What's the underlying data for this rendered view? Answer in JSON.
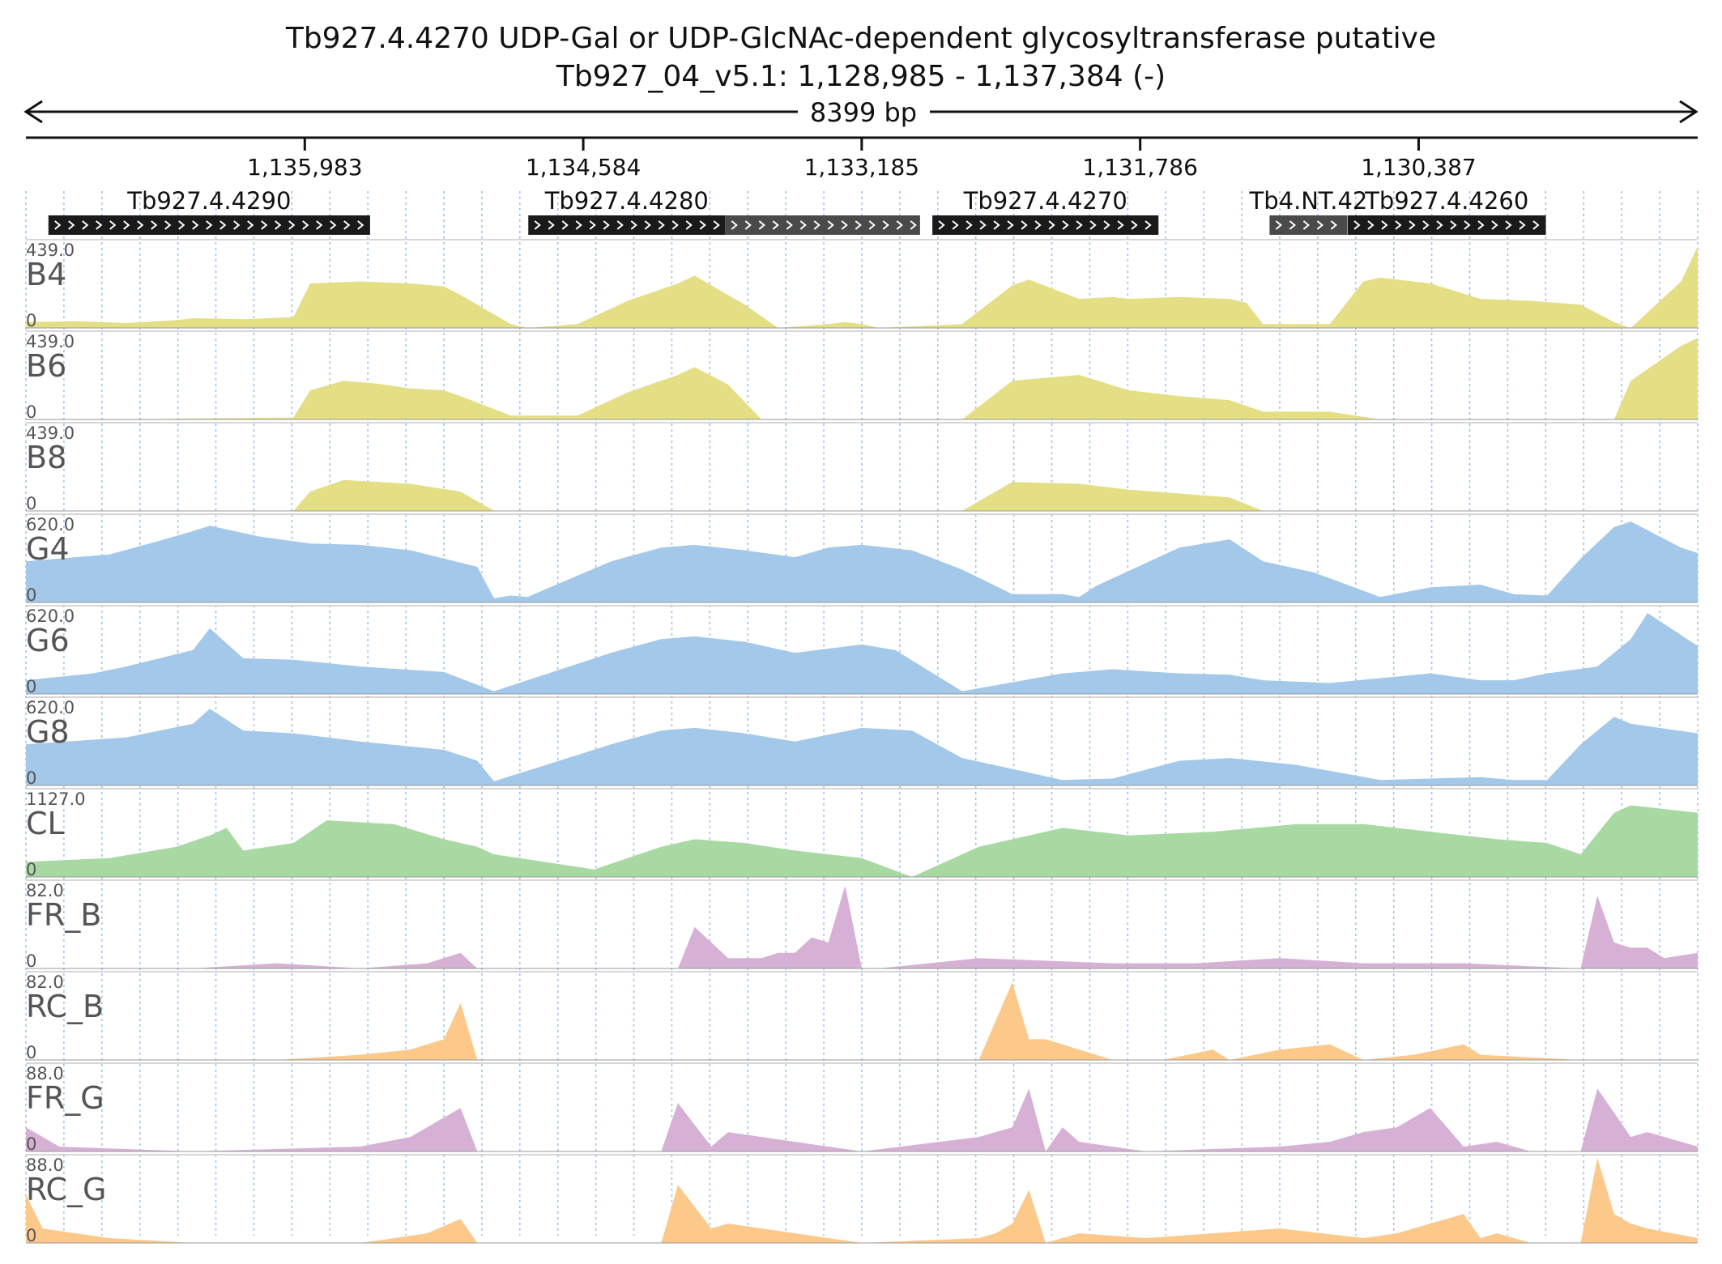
{
  "chart_data": {
    "type": "area",
    "title": "Tb927.4.4270  UDP-Gal or UDP-GlcNAc-dependent glycosyltransferase  putative",
    "subtitle": "Tb927_04_v5.1: 1,128,985 - 1,137,384 (-)",
    "span_label": "8399 bp",
    "region": {
      "chrom": "Tb927_04_v5.1",
      "start": 1128985,
      "end": 1137384,
      "strand": "-"
    },
    "tick_labels": [
      "1,135,983",
      "1,134,584",
      "1,133,185",
      "1,131,786",
      "1,130,387"
    ],
    "genes": [
      {
        "name": "Tb927.4.4290",
        "start": 1135655,
        "end": 1137271,
        "color": "#1a1a1a"
      },
      {
        "name": "Tb927.4.4280",
        "start": 1133871,
        "end": 1134860,
        "color": "#1a1a1a"
      },
      {
        "name": "Tb927.4.4280",
        "start": 1132892,
        "end": 1133871,
        "color": "#4a4a4a",
        "label_visible": false
      },
      {
        "name": "Tb927.4.4270",
        "start": 1131694,
        "end": 1132830,
        "color": "#1a1a1a"
      },
      {
        "name": "Tb4.NT.42",
        "start": 1130745,
        "end": 1131136,
        "color": "#4a4a4a"
      },
      {
        "name": "Tb927.4.4260",
        "start": 1129748,
        "end": 1130743,
        "color": "#1a1a1a"
      }
    ],
    "x_unit": "fraction of region",
    "tracks": [
      {
        "name": "B4",
        "ymax_label": "439.0",
        "ymin_label": "0",
        "ymax": 439,
        "color": "#e4de85",
        "x": [
          0,
          0.03,
          0.06,
          0.09,
          0.1,
          0.13,
          0.16,
          0.17,
          0.2,
          0.23,
          0.25,
          0.26,
          0.29,
          0.3,
          0.33,
          0.36,
          0.39,
          0.4,
          0.43,
          0.45,
          0.48,
          0.49,
          0.5,
          0.51,
          0.56,
          0.59,
          0.6,
          0.63,
          0.65,
          0.66,
          0.69,
          0.72,
          0.73,
          0.74,
          0.75,
          0.78,
          0.8,
          0.81,
          0.84,
          0.87,
          0.9,
          0.93,
          0.95,
          0.96,
          0.99,
          1
        ],
        "y": [
          30,
          35,
          25,
          40,
          50,
          45,
          55,
          230,
          240,
          230,
          215,
          170,
          20,
          0,
          20,
          140,
          230,
          270,
          120,
          0,
          20,
          30,
          20,
          0,
          20,
          220,
          250,
          150,
          160,
          150,
          160,
          150,
          130,
          20,
          20,
          20,
          240,
          260,
          230,
          150,
          140,
          120,
          30,
          0,
          240,
          420
        ]
      },
      {
        "name": "B6",
        "ymax_label": "439.0",
        "ymin_label": "0",
        "ymax": 439,
        "color": "#e4de85",
        "x": [
          0,
          0.06,
          0.1,
          0.16,
          0.17,
          0.19,
          0.21,
          0.23,
          0.25,
          0.26,
          0.29,
          0.33,
          0.36,
          0.39,
          0.4,
          0.42,
          0.44,
          0.45,
          0.5,
          0.56,
          0.59,
          0.63,
          0.66,
          0.69,
          0.72,
          0.74,
          0.78,
          0.81,
          0.84,
          0.87,
          0.9,
          0.93,
          0.95,
          0.96,
          0.99,
          1
        ],
        "y": [
          0,
          0,
          5,
          10,
          150,
          200,
          185,
          160,
          150,
          120,
          20,
          20,
          140,
          230,
          270,
          180,
          0,
          0,
          0,
          0,
          200,
          230,
          150,
          120,
          100,
          40,
          40,
          0,
          0,
          0,
          0,
          0,
          0,
          200,
          380,
          420
        ]
      },
      {
        "name": "B8",
        "ymax_label": "439.0",
        "ymin_label": "0",
        "ymax": 439,
        "color": "#e4de85",
        "x": [
          0,
          0.16,
          0.17,
          0.19,
          0.21,
          0.23,
          0.26,
          0.28,
          0.3,
          0.5,
          0.56,
          0.59,
          0.63,
          0.66,
          0.69,
          0.72,
          0.74,
          1
        ],
        "y": [
          0,
          0,
          100,
          160,
          150,
          140,
          100,
          0,
          0,
          0,
          0,
          150,
          140,
          110,
          90,
          70,
          0,
          0
        ]
      },
      {
        "name": "G4",
        "ymax_label": "620.0",
        "ymin_label": "0",
        "ymax": 620,
        "color": "#a3c8e9",
        "x": [
          0,
          0.05,
          0.08,
          0.1,
          0.11,
          0.14,
          0.17,
          0.2,
          0.23,
          0.27,
          0.28,
          0.29,
          0.3,
          0.35,
          0.38,
          0.4,
          0.43,
          0.46,
          0.48,
          0.5,
          0.53,
          0.56,
          0.59,
          0.62,
          0.63,
          0.64,
          0.69,
          0.72,
          0.74,
          0.77,
          0.81,
          0.84,
          0.87,
          0.89,
          0.91,
          0.93,
          0.95,
          0.96,
          0.99,
          1
        ],
        "y": [
          300,
          350,
          450,
          520,
          560,
          480,
          430,
          420,
          380,
          260,
          30,
          50,
          40,
          300,
          400,
          420,
          380,
          330,
          400,
          420,
          380,
          240,
          60,
          60,
          40,
          120,
          400,
          460,
          300,
          220,
          40,
          110,
          130,
          60,
          50,
          320,
          550,
          590,
          400,
          360
        ]
      },
      {
        "name": "G6",
        "ymax_label": "620.0",
        "ymin_label": "0",
        "ymax": 620,
        "color": "#a3c8e9",
        "x": [
          0,
          0.04,
          0.06,
          0.1,
          0.11,
          0.13,
          0.16,
          0.2,
          0.25,
          0.28,
          0.35,
          0.38,
          0.4,
          0.43,
          0.46,
          0.5,
          0.52,
          0.56,
          0.62,
          0.65,
          0.69,
          0.72,
          0.74,
          0.78,
          0.84,
          0.87,
          0.89,
          0.91,
          0.94,
          0.96,
          0.97,
          1
        ],
        "y": [
          100,
          150,
          200,
          320,
          480,
          260,
          250,
          200,
          160,
          20,
          300,
          400,
          420,
          380,
          300,
          360,
          320,
          20,
          150,
          180,
          150,
          140,
          100,
          80,
          150,
          100,
          100,
          150,
          200,
          400,
          590,
          350
        ]
      },
      {
        "name": "G8",
        "ymax_label": "620.0",
        "ymin_label": "0",
        "ymax": 620,
        "color": "#a3c8e9",
        "x": [
          0,
          0.06,
          0.1,
          0.11,
          0.13,
          0.16,
          0.2,
          0.25,
          0.27,
          0.28,
          0.35,
          0.38,
          0.4,
          0.43,
          0.46,
          0.5,
          0.53,
          0.56,
          0.62,
          0.65,
          0.69,
          0.72,
          0.76,
          0.81,
          0.84,
          0.87,
          0.89,
          0.91,
          0.93,
          0.95,
          0.96,
          1
        ],
        "y": [
          300,
          350,
          450,
          560,
          400,
          380,
          320,
          260,
          180,
          30,
          300,
          400,
          420,
          380,
          320,
          420,
          400,
          200,
          40,
          50,
          180,
          200,
          150,
          40,
          50,
          60,
          40,
          40,
          300,
          500,
          450,
          380
        ]
      },
      {
        "name": "CL",
        "ymax_label": "1127.0",
        "ymin_label": "0",
        "ymax": 1127,
        "color": "#a8d9a3",
        "x": [
          0,
          0.05,
          0.09,
          0.11,
          0.12,
          0.13,
          0.16,
          0.18,
          0.22,
          0.25,
          0.27,
          0.28,
          0.34,
          0.38,
          0.4,
          0.43,
          0.46,
          0.5,
          0.53,
          0.57,
          0.62,
          0.66,
          0.71,
          0.76,
          0.8,
          0.84,
          0.88,
          0.91,
          0.93,
          0.95,
          0.96,
          1
        ],
        "y": [
          200,
          250,
          400,
          550,
          650,
          350,
          450,
          750,
          700,
          500,
          400,
          300,
          100,
          400,
          500,
          450,
          350,
          250,
          0,
          400,
          650,
          550,
          600,
          700,
          700,
          600,
          500,
          450,
          300,
          850,
          950,
          850
        ]
      },
      {
        "name": "FR_B",
        "ymax_label": "82.0",
        "ymin_label": "0",
        "ymax": 82,
        "color": "#d7b0d6",
        "x": [
          0,
          0.1,
          0.15,
          0.2,
          0.24,
          0.26,
          0.27,
          0.39,
          0.4,
          0.42,
          0.44,
          0.45,
          0.46,
          0.47,
          0.48,
          0.49,
          0.5,
          0.51,
          0.57,
          0.65,
          0.7,
          0.75,
          0.8,
          0.86,
          0.93,
          0.94,
          0.95,
          0.96,
          0.97,
          0.98,
          1
        ],
        "y": [
          0,
          0,
          5,
          0,
          5,
          15,
          0,
          0,
          40,
          10,
          10,
          15,
          15,
          30,
          25,
          80,
          0,
          0,
          10,
          5,
          5,
          10,
          5,
          5,
          0,
          70,
          25,
          20,
          20,
          10,
          15
        ]
      },
      {
        "name": "RC_B",
        "ymax_label": "82.0",
        "ymin_label": "0",
        "ymax": 82,
        "color": "#fcc98b",
        "x": [
          0,
          0.15,
          0.2,
          0.23,
          0.24,
          0.25,
          0.26,
          0.27,
          0.28,
          0.29,
          0.31,
          0.33,
          0.36,
          0.4,
          0.5,
          0.57,
          0.59,
          0.6,
          0.61,
          0.63,
          0.65,
          0.68,
          0.71,
          0.72,
          0.75,
          0.78,
          0.8,
          0.83,
          0.86,
          0.87,
          0.93,
          0.94,
          0.95,
          1
        ],
        "y": [
          0,
          0,
          5,
          10,
          15,
          20,
          55,
          0,
          0,
          0,
          0,
          0,
          0,
          0,
          0,
          0,
          75,
          20,
          20,
          10,
          0,
          0,
          10,
          0,
          10,
          15,
          0,
          5,
          15,
          5,
          0,
          0,
          0,
          0
        ]
      },
      {
        "name": "FR_G",
        "ymax_label": "88.0",
        "ymin_label": "0",
        "ymax": 88,
        "color": "#d7b0d6",
        "x": [
          0,
          0.02,
          0.1,
          0.2,
          0.23,
          0.26,
          0.27,
          0.38,
          0.39,
          0.41,
          0.42,
          0.5,
          0.57,
          0.58,
          0.59,
          0.6,
          0.61,
          0.62,
          0.63,
          0.67,
          0.75,
          0.78,
          0.8,
          0.82,
          0.84,
          0.86,
          0.88,
          0.9,
          0.93,
          0.94,
          0.96,
          0.97,
          1
        ],
        "y": [
          25,
          5,
          0,
          5,
          15,
          45,
          0,
          0,
          50,
          5,
          20,
          0,
          15,
          20,
          25,
          65,
          0,
          25,
          10,
          0,
          5,
          10,
          20,
          25,
          45,
          5,
          10,
          0,
          0,
          65,
          15,
          20,
          5
        ]
      },
      {
        "name": "RC_G",
        "ymax_label": "88.0",
        "ymin_label": "0",
        "ymax": 88,
        "color": "#fcc98b",
        "x": [
          0,
          0.01,
          0.03,
          0.05,
          0.1,
          0.2,
          0.24,
          0.26,
          0.27,
          0.38,
          0.39,
          0.41,
          0.42,
          0.5,
          0.57,
          0.58,
          0.59,
          0.6,
          0.61,
          0.62,
          0.63,
          0.67,
          0.75,
          0.8,
          0.82,
          0.86,
          0.87,
          0.88,
          0.9,
          0.93,
          0.94,
          0.95,
          0.96,
          0.97,
          1
        ],
        "y": [
          50,
          15,
          10,
          5,
          0,
          0,
          10,
          25,
          0,
          0,
          60,
          15,
          20,
          0,
          5,
          10,
          20,
          55,
          0,
          5,
          10,
          5,
          15,
          5,
          10,
          30,
          5,
          10,
          0,
          0,
          88,
          30,
          20,
          15,
          5
        ]
      }
    ]
  }
}
